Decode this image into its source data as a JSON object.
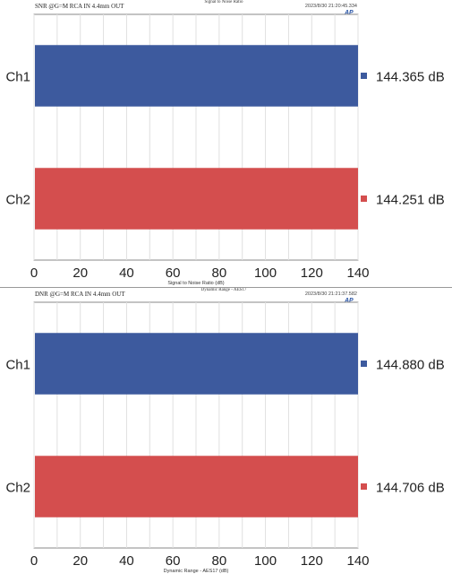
{
  "chart_data": [
    {
      "type": "bar",
      "orientation": "horizontal",
      "header_left": "SNR @G=M RCA IN 4.4mm OUT",
      "title": "Signal to Noise Ratio",
      "timestamp": "2023/8/30 21:20:45.334",
      "logo": "AP",
      "categories": [
        "Ch1",
        "Ch2"
      ],
      "values": [
        144.365,
        144.251
      ],
      "value_labels": [
        "144.365 dB",
        "144.251 dB"
      ],
      "colors": [
        "#3d5a9e",
        "#d44e4e"
      ],
      "xlabel": "Signal to Noise Ratio (dB)",
      "xlim": [
        0,
        140
      ],
      "xticks": [
        "0",
        "20",
        "40",
        "60",
        "80",
        "100",
        "120",
        "140"
      ],
      "grid": true
    },
    {
      "type": "bar",
      "orientation": "horizontal",
      "header_left": "DNR @G=M RCA IN 4.4mm OUT",
      "title": "Dynamic Range - AES17",
      "timestamp": "2023/8/30 21:21:37.582",
      "logo": "AP",
      "categories": [
        "Ch1",
        "Ch2"
      ],
      "values": [
        144.88,
        144.706
      ],
      "value_labels": [
        "144.880 dB",
        "144.706 dB"
      ],
      "colors": [
        "#3d5a9e",
        "#d44e4e"
      ],
      "xlabel": "Dynamic Range - AES17 (dB)",
      "xlim": [
        0,
        140
      ],
      "xticks": [
        "0",
        "20",
        "40",
        "60",
        "80",
        "100",
        "120",
        "140"
      ],
      "grid": true
    }
  ]
}
